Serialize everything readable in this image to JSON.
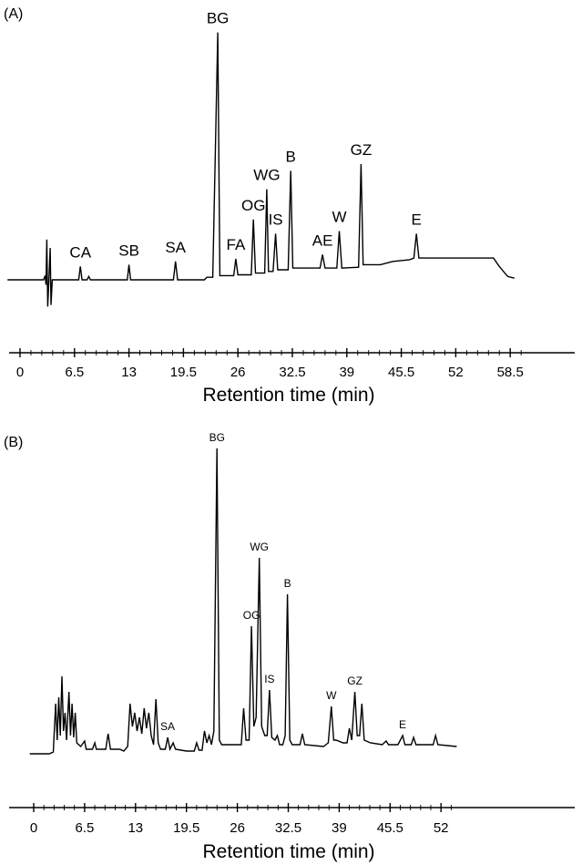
{
  "chart_data": [
    {
      "type": "line",
      "panel_label": "(A)",
      "xlabel": "Retention time (min)",
      "xlim": [
        0,
        60
      ],
      "xticks": [
        "0",
        "6.5",
        "13",
        "19.5",
        "26",
        "32.5",
        "39",
        "45.5",
        "52",
        "58.5"
      ],
      "series": [
        {
          "points": [
            [
              -1.5,
              0
            ],
            [
              2.8,
              0
            ],
            [
              3.0,
              5
            ],
            [
              3.1,
              -6
            ],
            [
              3.2,
              48
            ],
            [
              3.3,
              -32
            ],
            [
              3.45,
              0
            ],
            [
              3.6,
              38
            ],
            [
              3.7,
              -30
            ],
            [
              3.85,
              0
            ],
            [
              4.2,
              0
            ],
            [
              7.0,
              0
            ],
            [
              7.2,
              16
            ],
            [
              7.4,
              0
            ],
            [
              8.0,
              0
            ],
            [
              8.2,
              4
            ],
            [
              8.4,
              0
            ],
            [
              12.8,
              0
            ],
            [
              13.0,
              18
            ],
            [
              13.2,
              0
            ],
            [
              18.3,
              0
            ],
            [
              18.55,
              22
            ],
            [
              18.8,
              0
            ],
            [
              22.0,
              0
            ],
            [
              22.3,
              3
            ],
            [
              23.0,
              3
            ],
            [
              23.6,
              295
            ],
            [
              23.85,
              5
            ],
            [
              25.5,
              5
            ],
            [
              25.75,
              25
            ],
            [
              26.0,
              6
            ],
            [
              27.6,
              6
            ],
            [
              27.85,
              72
            ],
            [
              28.1,
              8
            ],
            [
              29.2,
              8
            ],
            [
              29.45,
              108
            ],
            [
              29.65,
              10
            ],
            [
              30.2,
              10
            ],
            [
              30.5,
              55
            ],
            [
              30.75,
              12
            ],
            [
              32.0,
              12
            ],
            [
              32.3,
              130
            ],
            [
              32.55,
              14
            ],
            [
              35.8,
              14
            ],
            [
              36.1,
              30
            ],
            [
              36.4,
              14
            ],
            [
              37.8,
              14
            ],
            [
              38.1,
              58
            ],
            [
              38.4,
              14
            ],
            [
              40.4,
              15
            ],
            [
              40.7,
              138
            ],
            [
              40.95,
              18
            ],
            [
              43,
              18
            ],
            [
              44.5,
              22
            ],
            [
              46.5,
              24
            ],
            [
              47.0,
              26
            ],
            [
              47.3,
              55
            ],
            [
              47.6,
              26
            ],
            [
              50,
              26
            ],
            [
              53,
              26
            ],
            [
              56.5,
              26
            ],
            [
              57.2,
              16
            ],
            [
              58.2,
              4
            ],
            [
              59.0,
              2
            ]
          ]
        }
      ],
      "peaks": [
        {
          "label": "CA",
          "x": 7.2
        },
        {
          "label": "SB",
          "x": 13.0
        },
        {
          "label": "SA",
          "x": 18.55
        },
        {
          "label": "BG",
          "x": 23.6
        },
        {
          "label": "FA",
          "x": 25.75
        },
        {
          "label": "OG",
          "x": 27.85
        },
        {
          "label": "WG",
          "x": 29.45
        },
        {
          "label": "IS",
          "x": 30.5
        },
        {
          "label": "B",
          "x": 32.3
        },
        {
          "label": "AE",
          "x": 36.1
        },
        {
          "label": "W",
          "x": 38.1
        },
        {
          "label": "GZ",
          "x": 40.7
        },
        {
          "label": "E",
          "x": 47.3
        }
      ]
    },
    {
      "type": "line",
      "panel_label": "(B)",
      "xlabel": "Retention time (min)",
      "xlim": [
        0,
        54
      ],
      "xticks": [
        "0",
        "6.5",
        "13",
        "19.5",
        "26",
        "32.5",
        "39",
        "45.5",
        "52"
      ],
      "series": [
        {
          "points": [
            [
              -0.5,
              0
            ],
            [
              2.0,
              0
            ],
            [
              2.5,
              2
            ],
            [
              2.8,
              55
            ],
            [
              3.0,
              15
            ],
            [
              3.2,
              62
            ],
            [
              3.4,
              20
            ],
            [
              3.6,
              85
            ],
            [
              3.8,
              25
            ],
            [
              4.0,
              45
            ],
            [
              4.2,
              15
            ],
            [
              4.5,
              68
            ],
            [
              4.7,
              20
            ],
            [
              4.9,
              55
            ],
            [
              5.1,
              18
            ],
            [
              5.3,
              45
            ],
            [
              5.5,
              12
            ],
            [
              6.0,
              8
            ],
            [
              6.5,
              14
            ],
            [
              6.7,
              5
            ],
            [
              7.5,
              5
            ],
            [
              7.8,
              12
            ],
            [
              8.0,
              5
            ],
            [
              9.2,
              5
            ],
            [
              9.5,
              22
            ],
            [
              9.8,
              5
            ],
            [
              11.0,
              5
            ],
            [
              11.5,
              3
            ],
            [
              12.0,
              8
            ],
            [
              12.3,
              55
            ],
            [
              12.6,
              30
            ],
            [
              12.9,
              45
            ],
            [
              13.2,
              25
            ],
            [
              13.5,
              40
            ],
            [
              13.8,
              22
            ],
            [
              14.1,
              50
            ],
            [
              14.4,
              28
            ],
            [
              14.7,
              45
            ],
            [
              15.0,
              20
            ],
            [
              15.3,
              10
            ],
            [
              15.6,
              60
            ],
            [
              15.9,
              12
            ],
            [
              16.2,
              5
            ],
            [
              16.8,
              5
            ],
            [
              17.1,
              18
            ],
            [
              17.4,
              5
            ],
            [
              17.8,
              12
            ],
            [
              18.1,
              5
            ],
            [
              19.5,
              3
            ],
            [
              20.5,
              3
            ],
            [
              20.8,
              12
            ],
            [
              21.1,
              4
            ],
            [
              21.5,
              4
            ],
            [
              21.8,
              25
            ],
            [
              22.1,
              12
            ],
            [
              22.4,
              20
            ],
            [
              22.7,
              10
            ],
            [
              23.0,
              25
            ],
            [
              23.4,
              335
            ],
            [
              23.7,
              15
            ],
            [
              24.0,
              10
            ],
            [
              26.5,
              10
            ],
            [
              26.8,
              50
            ],
            [
              27.1,
              15
            ],
            [
              27.5,
              15
            ],
            [
              27.8,
              140
            ],
            [
              28.1,
              30
            ],
            [
              28.4,
              40
            ],
            [
              28.8,
              215
            ],
            [
              29.1,
              30
            ],
            [
              29.5,
              20
            ],
            [
              29.8,
              20
            ],
            [
              30.1,
              70
            ],
            [
              30.4,
              18
            ],
            [
              30.8,
              15
            ],
            [
              31.1,
              20
            ],
            [
              31.4,
              10
            ],
            [
              31.8,
              10
            ],
            [
              32.1,
              20
            ],
            [
              32.4,
              175
            ],
            [
              32.7,
              15
            ],
            [
              33.0,
              10
            ],
            [
              34.0,
              10
            ],
            [
              34.3,
              22
            ],
            [
              34.6,
              10
            ],
            [
              37.0,
              8
            ],
            [
              37.3,
              10
            ],
            [
              37.6,
              12
            ],
            [
              38.0,
              52
            ],
            [
              38.3,
              15
            ],
            [
              38.6,
              15
            ],
            [
              39.5,
              12
            ],
            [
              40.0,
              12
            ],
            [
              40.3,
              28
            ],
            [
              40.6,
              15
            ],
            [
              41.0,
              68
            ],
            [
              41.3,
              20
            ],
            [
              41.6,
              20
            ],
            [
              41.9,
              55
            ],
            [
              42.2,
              15
            ],
            [
              43.0,
              12
            ],
            [
              44.5,
              10
            ],
            [
              45.0,
              14
            ],
            [
              45.3,
              10
            ],
            [
              46.5,
              10
            ],
            [
              47.1,
              20
            ],
            [
              47.4,
              10
            ],
            [
              48.2,
              10
            ],
            [
              48.5,
              18
            ],
            [
              48.8,
              10
            ],
            [
              51.0,
              10
            ],
            [
              51.3,
              20
            ],
            [
              51.6,
              10
            ],
            [
              54.0,
              8
            ]
          ]
        }
      ],
      "peaks": [
        {
          "label": "SA",
          "x": 17.1
        },
        {
          "label": "BG",
          "x": 23.4
        },
        {
          "label": "OG",
          "x": 27.8
        },
        {
          "label": "WG",
          "x": 28.8
        },
        {
          "label": "IS",
          "x": 30.1
        },
        {
          "label": "B",
          "x": 32.4
        },
        {
          "label": "W",
          "x": 38.0
        },
        {
          "label": "GZ",
          "x": 41.0
        },
        {
          "label": "E",
          "x": 47.1
        }
      ]
    }
  ]
}
